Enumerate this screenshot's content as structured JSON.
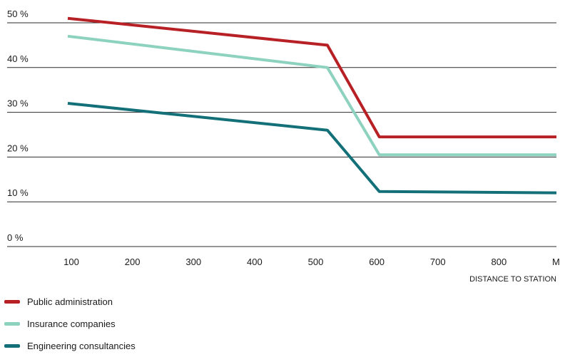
{
  "chart_data": {
    "type": "line",
    "title": "",
    "xlabel": "DISTANCE TO STATION",
    "ylabel": "",
    "x_unit": "M",
    "x_ticks": [
      100,
      200,
      300,
      400,
      500,
      600,
      700,
      800
    ],
    "x_tick_labels": [
      "100",
      "200",
      "300",
      "400",
      "500",
      "600",
      "700",
      "800"
    ],
    "y_ticks": [
      0,
      10,
      20,
      30,
      40,
      50
    ],
    "y_tick_labels": [
      "0 %",
      "10 %",
      "20 %",
      "30 %",
      "40 %",
      "50 %"
    ],
    "xlim": [
      100,
      900
    ],
    "ylim": [
      0,
      50
    ],
    "grid": "horizontal",
    "legend_position": "bottom-left",
    "series": [
      {
        "name": "Public administration",
        "color": "#b72025",
        "points": [
          [
            100,
            51
          ],
          [
            525,
            45
          ],
          [
            610,
            24.5
          ],
          [
            900,
            24.5
          ]
        ]
      },
      {
        "name": "Insurance companies",
        "color": "#8dd1bf",
        "points": [
          [
            100,
            47
          ],
          [
            525,
            40
          ],
          [
            610,
            20.5
          ],
          [
            900,
            20.5
          ]
        ]
      },
      {
        "name": "Engineering consultancies",
        "color": "#137079",
        "points": [
          [
            100,
            32
          ],
          [
            525,
            26
          ],
          [
            610,
            12.3
          ],
          [
            900,
            12
          ]
        ]
      }
    ]
  }
}
